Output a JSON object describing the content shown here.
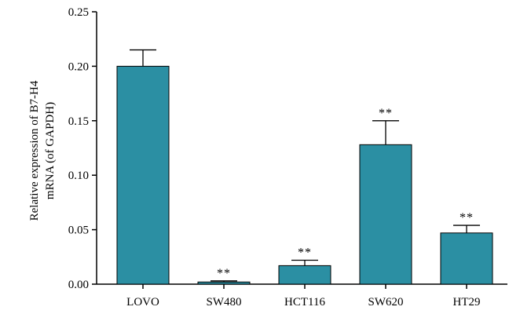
{
  "chart_data": {
    "type": "bar",
    "title": "",
    "xlabel": "",
    "ylabel_lines": [
      "Relative expression of B7-H4",
      "mRNA (of GAPDH)"
    ],
    "categories": [
      "LOVO",
      "SW480",
      "HCT116",
      "SW620",
      "HT29"
    ],
    "values": [
      0.2,
      0.002,
      0.017,
      0.128,
      0.047
    ],
    "error_upper": [
      0.215,
      0.003,
      0.022,
      0.15,
      0.054
    ],
    "significance": [
      "",
      "**",
      "**",
      "**",
      "**"
    ],
    "ylim": [
      0,
      0.25
    ],
    "yticks": [
      "0.00",
      "0.05",
      "0.10",
      "0.15",
      "0.20",
      "0.25"
    ],
    "bar_color": "#2b8fa3",
    "grid": false
  }
}
